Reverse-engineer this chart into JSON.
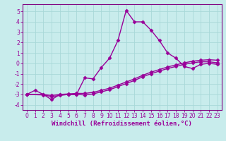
{
  "xlabel": "Windchill (Refroidissement éolien,°C)",
  "bg_color": "#c8ecec",
  "grid_color": "#a8d8d8",
  "line_color": "#990099",
  "xlim": [
    -0.5,
    23.5
  ],
  "ylim": [
    -4.5,
    5.7
  ],
  "xticks": [
    0,
    1,
    2,
    3,
    4,
    5,
    6,
    7,
    8,
    9,
    10,
    11,
    12,
    13,
    14,
    15,
    16,
    17,
    18,
    19,
    20,
    21,
    22,
    23
  ],
  "yticks": [
    -4,
    -3,
    -2,
    -1,
    0,
    1,
    2,
    3,
    4,
    5
  ],
  "series": [
    {
      "x": [
        0,
        1,
        2,
        3,
        4,
        5,
        6,
        7,
        8,
        9,
        10,
        11,
        12,
        13,
        14,
        15,
        16,
        17,
        18,
        19,
        20,
        21,
        22,
        23
      ],
      "y": [
        -3.0,
        -2.6,
        -3.0,
        -3.5,
        -3.0,
        -3.0,
        -3.0,
        -1.4,
        -1.5,
        -0.4,
        0.5,
        2.2,
        5.1,
        4.0,
        4.0,
        3.2,
        2.2,
        1.0,
        0.5,
        -0.3,
        -0.5,
        -0.1,
        0.0,
        -0.1
      ]
    },
    {
      "x": [
        0,
        2,
        3,
        4,
        5,
        6,
        7,
        8,
        9,
        10,
        11,
        12,
        13,
        14,
        15,
        16,
        17,
        18,
        19,
        20,
        21,
        22,
        23
      ],
      "y": [
        -3.0,
        -3.0,
        -3.1,
        -3.0,
        -2.95,
        -2.9,
        -2.9,
        -2.8,
        -2.6,
        -2.4,
        -2.1,
        -1.8,
        -1.5,
        -1.15,
        -0.85,
        -0.6,
        -0.35,
        -0.15,
        0.05,
        0.2,
        0.3,
        0.35,
        0.3
      ]
    },
    {
      "x": [
        0,
        2,
        3,
        4,
        5,
        6,
        7,
        8,
        9,
        10,
        11,
        12,
        13,
        14,
        15,
        16,
        17,
        18,
        19,
        20,
        21,
        22,
        23
      ],
      "y": [
        -3.0,
        -3.05,
        -3.2,
        -3.1,
        -3.0,
        -3.0,
        -3.05,
        -2.95,
        -2.75,
        -2.55,
        -2.25,
        -1.95,
        -1.65,
        -1.3,
        -1.0,
        -0.75,
        -0.5,
        -0.3,
        -0.1,
        0.05,
        0.15,
        0.15,
        0.05
      ]
    }
  ],
  "marker": "D",
  "markersize": 2.5,
  "linewidth": 1.0,
  "tick_fontsize": 5.5,
  "label_fontsize": 6.5,
  "spine_color": "#800080"
}
